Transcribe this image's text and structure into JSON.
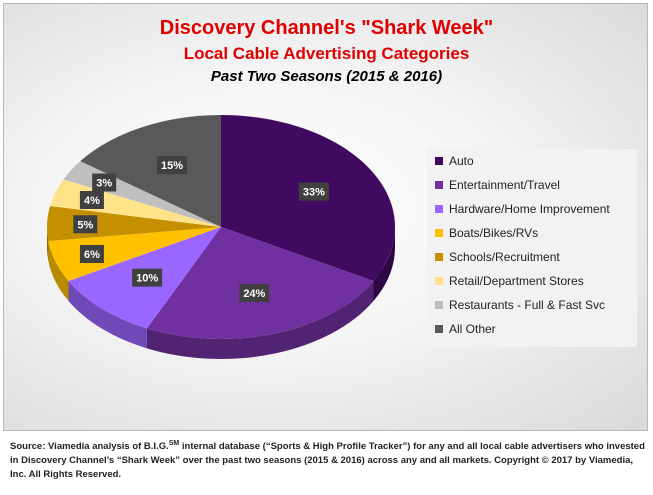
{
  "chart_data": {
    "type": "pie",
    "title": "Discovery Channel's \"Shark Week\"",
    "subtitle": "Local Cable Advertising Categories",
    "subtitle2": "Past Two Seasons (2015 & 2016)",
    "legend_position": "right",
    "slices": [
      {
        "label": "Auto",
        "value": 33,
        "display": "33%",
        "color": "#3f0a5f"
      },
      {
        "label": "Entertainment/Travel",
        "value": 24,
        "display": "24%",
        "color": "#7030a0"
      },
      {
        "label": "Hardware/Home Improvement",
        "value": 10,
        "display": "10%",
        "color": "#9966ff"
      },
      {
        "label": "Boats/Bikes/RVs",
        "value": 6,
        "display": "6%",
        "color": "#ffc000"
      },
      {
        "label": "Schools/Recruitment",
        "value": 5,
        "display": "5%",
        "color": "#c49000"
      },
      {
        "label": "Retail/Department Stores",
        "value": 4,
        "display": "4%",
        "color": "#ffe38a"
      },
      {
        "label": "Restaurants - Full & Fast Svc",
        "value": 3,
        "display": "3%",
        "color": "#bfbfbf"
      },
      {
        "label": "All Other",
        "value": 15,
        "display": "15%",
        "color": "#595959"
      }
    ]
  },
  "footnote": {
    "line1_pre": "Source: Viamedia analysis of B.I.G.",
    "sup": "SM",
    "line1_post": "  internal database (“Sports & High Profile Tracker”) for any and all local cable advertisers who invested in Discovery Channel’s “Shark Week” over the past two seasons (2015 & 2016) across any and all markets. Copyright © 2017 by Viamedia, Inc. All Rights Reserved."
  }
}
